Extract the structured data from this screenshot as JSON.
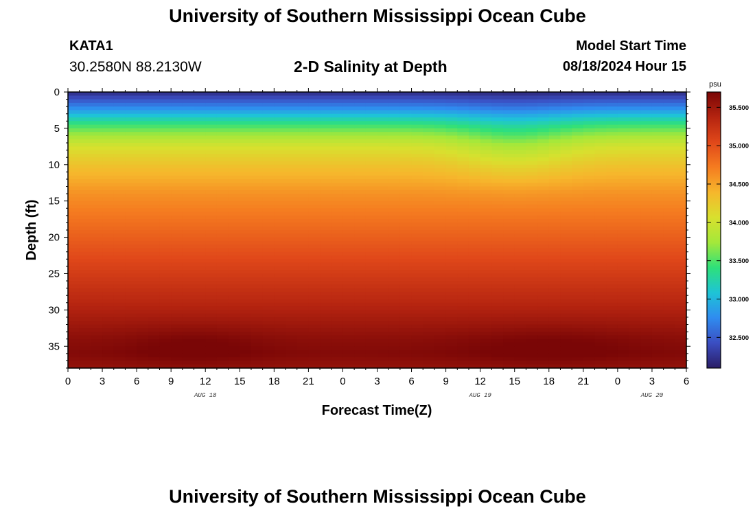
{
  "header": {
    "title": "University of Southern Mississippi Ocean Cube",
    "station": "KATA1",
    "coordinates": "30.2580N  88.2130W",
    "chart_title": "2-D Salinity at Depth",
    "model_start_label": "Model Start Time",
    "model_start_value": "08/18/2024 Hour 15"
  },
  "footer": {
    "title": "University of Southern Mississippi Ocean Cube"
  },
  "colors": {
    "background": "#ffffff",
    "colormap": [
      "#2a1d66",
      "#3b4ec2",
      "#2f8cf0",
      "#1ec4d6",
      "#2ee07a",
      "#a4e83a",
      "#d8e02e",
      "#f6b72c",
      "#f57c20",
      "#e0481a",
      "#b52410",
      "#7a0606"
    ]
  },
  "chart_data": {
    "type": "heatmap",
    "title": "2-D Salinity at Depth",
    "xlabel": "Forecast Time(Z)",
    "ylabel": "Depth (ft)",
    "units": "psu",
    "x_hours": [
      0,
      3,
      6,
      9,
      12,
      15,
      18,
      21,
      24,
      27,
      30,
      33,
      36,
      39,
      42,
      45,
      48,
      51,
      54
    ],
    "x_tick_labels": [
      "0",
      "3",
      "6",
      "9",
      "12",
      "15",
      "18",
      "21",
      "0",
      "3",
      "6",
      "9",
      "12",
      "15",
      "18",
      "21",
      "0",
      "3",
      "6"
    ],
    "day_labels": [
      {
        "label": "AUG 18",
        "hour": 12
      },
      {
        "label": "AUG 19",
        "hour": 36
      },
      {
        "label": "AUG 20",
        "hour": 51
      }
    ],
    "y_ticks": [
      0,
      5,
      10,
      15,
      20,
      25,
      30,
      35
    ],
    "ylim": [
      0,
      38
    ],
    "xlim": [
      0,
      54
    ],
    "colorbar": {
      "label": "psu",
      "range": [
        32.1,
        35.7
      ],
      "ticks": [
        "35.500",
        "35.000",
        "34.500",
        "34.000",
        "33.500",
        "33.000",
        "32.500"
      ],
      "tick_values": [
        35.5,
        35.0,
        34.5,
        34.0,
        33.5,
        33.0,
        32.5
      ]
    },
    "salinity_profile": {
      "depths_ft": [
        0,
        1,
        2,
        3,
        4,
        5,
        6,
        7,
        8,
        9,
        10,
        12,
        14,
        16,
        18,
        20,
        22,
        24,
        26,
        28,
        30,
        32,
        34,
        36,
        38
      ],
      "values_psu": [
        32.2,
        32.45,
        32.7,
        33.0,
        33.3,
        33.55,
        33.75,
        33.95,
        34.1,
        34.2,
        34.3,
        34.45,
        34.6,
        34.7,
        34.8,
        34.9,
        35.0,
        35.1,
        35.2,
        35.3,
        35.4,
        35.5,
        35.6,
        35.65,
        35.55
      ]
    }
  }
}
